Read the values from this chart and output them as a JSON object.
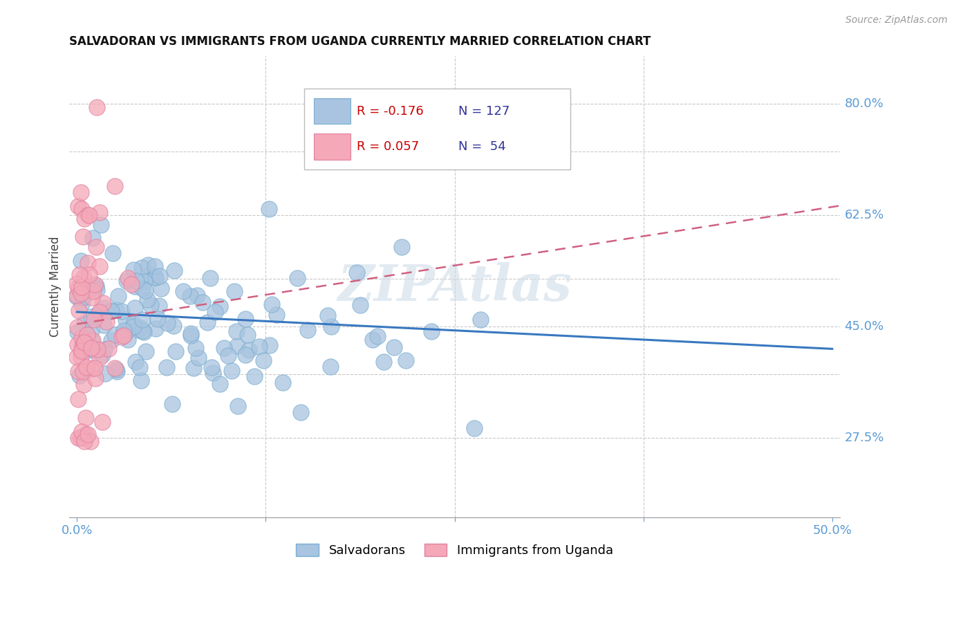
{
  "title": "SALVADORAN VS IMMIGRANTS FROM UGANDA CURRENTLY MARRIED CORRELATION CHART",
  "source": "Source: ZipAtlas.com",
  "ylabel": "Currently Married",
  "ymin": 0.15,
  "ymax": 0.875,
  "xmin": -0.005,
  "xmax": 0.505,
  "watermark": "ZIPAtlas",
  "ytick_vals": [
    0.275,
    0.45,
    0.625,
    0.8
  ],
  "ytick_labels": [
    "27.5%",
    "45.0%",
    "62.5%",
    "80.0%"
  ],
  "hgrid_vals": [
    0.275,
    0.375,
    0.45,
    0.525,
    0.625,
    0.725,
    0.8
  ],
  "vgrid_vals": [
    0.125,
    0.25,
    0.375
  ],
  "xtick_vals": [
    0.0,
    0.125,
    0.25,
    0.375,
    0.5
  ],
  "xtick_labels": [
    "0.0%",
    "",
    "",
    "",
    "50.0%"
  ],
  "title_fontsize": 12,
  "source_fontsize": 10,
  "axis_color": "#5b9bd5",
  "grid_color": "#c8c8c8",
  "watermark_color": "#d0dde8",
  "scatter_blue": "#a8c4e0",
  "scatter_blue_edge": "#7aaed0",
  "scatter_pink": "#f4a8b8",
  "scatter_pink_edge": "#e080a0",
  "line_blue": "#3878c0",
  "line_pink": "#d06080",
  "blue_line_x": [
    0.0,
    0.5
  ],
  "blue_line_y": [
    0.473,
    0.415
  ],
  "pink_line_x": [
    0.0,
    0.505
  ],
  "pink_line_y": [
    0.454,
    0.64
  ],
  "legend_blue_R": "R = -0.176",
  "legend_blue_N": "N = 127",
  "legend_pink_R": "R = 0.057",
  "legend_pink_N": "N =  54",
  "legend_label_blue": "Salvadorans",
  "legend_label_pink": "Immigrants from Uganda"
}
